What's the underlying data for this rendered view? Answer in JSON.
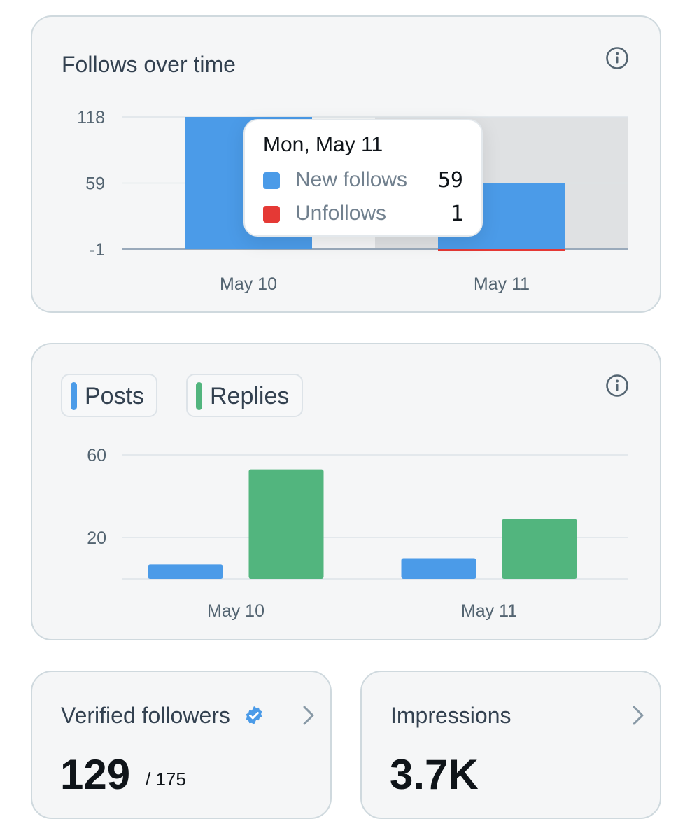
{
  "follows_card": {
    "title": "Follows over time",
    "tooltip": {
      "date": "Mon, May 11",
      "rows": [
        {
          "label": "New follows",
          "value": "59",
          "color": "#4b9be8"
        },
        {
          "label": "Unfollows",
          "value": "1",
          "color": "#e53935"
        }
      ]
    }
  },
  "posts_card": {
    "legend": [
      {
        "label": "Posts",
        "color": "#4b9be8"
      },
      {
        "label": "Replies",
        "color": "#52b57e"
      }
    ]
  },
  "verified_card": {
    "title": "Verified followers",
    "value": "129",
    "sub": "/ 175"
  },
  "impressions_card": {
    "title": "Impressions",
    "value": "3.7K"
  },
  "chart_data": [
    {
      "type": "bar",
      "title": "Follows over time",
      "categories": [
        "May 10",
        "May 11"
      ],
      "y_ticks": [
        "118",
        "59",
        "-1"
      ],
      "ylim": [
        -1,
        118
      ],
      "highlighted_category": "May 11",
      "series": [
        {
          "name": "New follows",
          "color": "#4b9be8",
          "values": [
            118,
            59
          ]
        },
        {
          "name": "Unfollows",
          "color": "#e53935",
          "values": [
            0,
            1
          ]
        }
      ]
    },
    {
      "type": "bar",
      "categories": [
        "May 10",
        "May 11"
      ],
      "y_ticks": [
        "60",
        "20"
      ],
      "ylim": [
        0,
        60
      ],
      "series": [
        {
          "name": "Posts",
          "color": "#4b9be8",
          "values": [
            7,
            10
          ]
        },
        {
          "name": "Replies",
          "color": "#52b57e",
          "values": [
            53,
            29
          ]
        }
      ]
    }
  ]
}
